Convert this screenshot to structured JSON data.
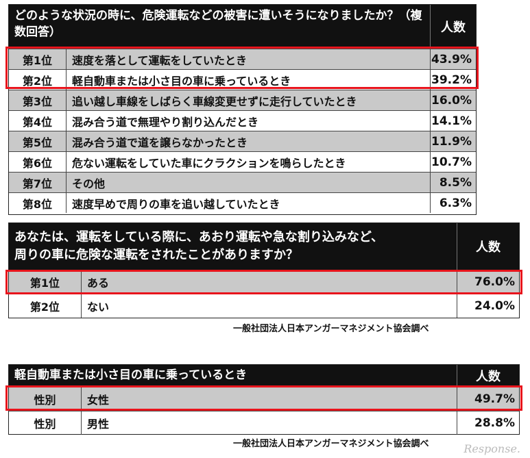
{
  "table1": {
    "question": "どのような状況の時に、危険運転などの被害に遭いそうになりましたか？（複数回答）",
    "count_header": "人数",
    "rows": [
      {
        "rank": "第1位",
        "text": "速度を落として運転をしていたとき",
        "value": "43.9%"
      },
      {
        "rank": "第2位",
        "text": "軽自動車または小さ目の車に乗っているとき",
        "value": "39.2%"
      },
      {
        "rank": "第3位",
        "text": "追い越し車線をしばらく車線変更せずに走行していたとき",
        "value": "16.0%"
      },
      {
        "rank": "第4位",
        "text": "混み合う道で無理やり割り込んだとき",
        "value": "14.1%"
      },
      {
        "rank": "第5位",
        "text": "混み合う道で道を譲らなかったとき",
        "value": "11.9%"
      },
      {
        "rank": "第6位",
        "text": "危ない運転をしていた車にクラクションを鳴らしたとき",
        "value": "10.7%"
      },
      {
        "rank": "第7位",
        "text": "その他",
        "value": "8.5%"
      },
      {
        "rank": "第8位",
        "text": "速度早めで周りの車を追い越していたとき",
        "value": "6.3%"
      }
    ]
  },
  "table2": {
    "question_line1": "あなたは、運転をしている際に、あおり運転や急な割り込みなど、",
    "question_line2": "周りの車に危険な運転をされたことがありますか？",
    "count_header": "人数",
    "rows": [
      {
        "rank": "第1位",
        "text": "ある",
        "value": "76.0%"
      },
      {
        "rank": "第2位",
        "text": "ない",
        "value": "24.0%"
      }
    ],
    "source": "一般社団法人日本アンガーマネジメント協会調べ"
  },
  "table3": {
    "question": "軽自動車または小さ目の車に乗っているとき",
    "count_header": "人数",
    "rows": [
      {
        "rank": "性別",
        "text": "女性",
        "value": "49.7%"
      },
      {
        "rank": "性別",
        "text": "男性",
        "value": "28.8%"
      }
    ],
    "source": "一般社団法人日本アンガーマネジメント協会調べ"
  },
  "watermark": "Response."
}
